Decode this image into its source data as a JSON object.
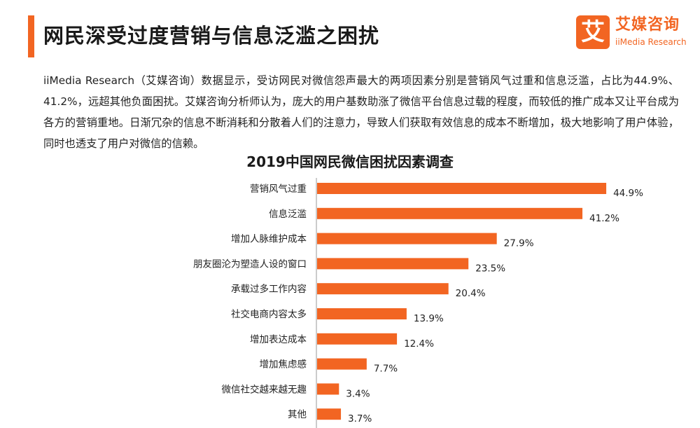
{
  "header": {
    "title": "网民深受过度营销与信息泛滥之困扰"
  },
  "logo": {
    "mark": "艾",
    "name_cn": "艾媒咨询",
    "name_en": "iiMedia Research"
  },
  "paragraph": "iiMedia Research（艾媒咨询）数据显示，受访网民对微信怨声最大的两项因素分别是营销风气过重和信息泛滥，占比为44.9%、41.2%，远超其他负面困扰。艾媒咨询分析师认为，庞大的用户基数助涨了微信平台信息过载的程度，而较低的推广成本又让平台成为各方的营销重地。日渐冗杂的信息不断消耗和分散着人们的注意力，导致人们获取有效信息的成本不断增加，极大地影响了用户体验，同时也透支了用户对微信的信赖。",
  "colors": {
    "accent": "#f26522",
    "bar": "#f26522"
  },
  "chart_data": {
    "type": "bar",
    "orientation": "horizontal",
    "title": "2019中国网民微信困扰因素调查",
    "categories": [
      "营销风气过重",
      "信息泛滥",
      "增加人脉维护成本",
      "朋友圈沦为塑造人设的窗口",
      "承载过多工作内容",
      "社交电商内容太多",
      "增加表达成本",
      "增加焦虑感",
      "微信社交越来越无趣",
      "其他"
    ],
    "values": [
      44.9,
      41.2,
      27.9,
      23.5,
      20.4,
      13.9,
      12.4,
      7.7,
      3.4,
      3.7
    ],
    "labels": [
      "44.9%",
      "41.2%",
      "27.9%",
      "23.5%",
      "20.4%",
      "13.9%",
      "12.4%",
      "7.7%",
      "3.4%",
      "3.7%"
    ],
    "unit": "%",
    "xlim": [
      0,
      50
    ],
    "grid": false,
    "legend": "none"
  }
}
